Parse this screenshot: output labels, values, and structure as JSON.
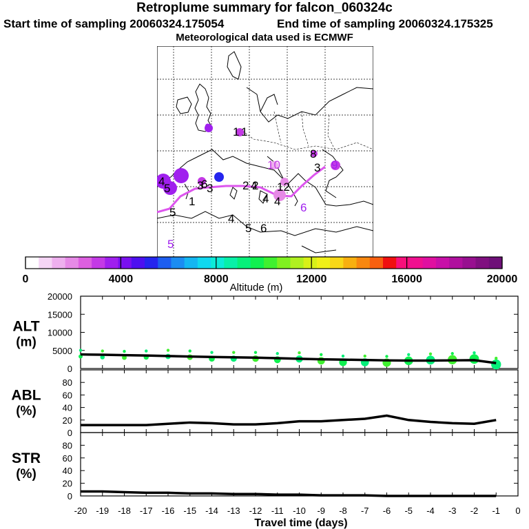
{
  "header": {
    "title": "Retroplume summary for falcon_060324c",
    "start_time": "Start time of sampling 20060324.175054",
    "end_time": "End time of sampling 20060324.175325",
    "meteo": "Meteorological data used is ECMWF"
  },
  "colorbar": {
    "label": "Altitude (m)",
    "tick_labels": [
      "0",
      "4000",
      "8000",
      "12000",
      "16000",
      "20000"
    ],
    "tick_values": [
      0,
      4000,
      8000,
      12000,
      16000,
      20000
    ],
    "colors": [
      "#ffffff",
      "#f5d5f5",
      "#eeb0ee",
      "#e68ae6",
      "#dd5fe0",
      "#c43ae6",
      "#a020ee",
      "#7a10f0",
      "#4d10f0",
      "#2525ee",
      "#1d5ef0",
      "#1b8cf2",
      "#14b6f2",
      "#10d8f0",
      "#0cecd8",
      "#08f0a8",
      "#06f07a",
      "#10f050",
      "#40f030",
      "#80f020",
      "#b0f020",
      "#d8f018",
      "#f0f018",
      "#f8d818",
      "#f8b010",
      "#f88810",
      "#f86010",
      "#f01010",
      "#f8107a",
      "#f01090",
      "#e010a0",
      "#c810a8",
      "#b0109e",
      "#981090",
      "#801080",
      "#6e1078"
    ]
  },
  "map": {
    "trajectory_color": "#dd55ee",
    "labels": [
      {
        "text": "0",
        "color": "#a020ee"
      },
      {
        "text": "1",
        "color": "#000000"
      },
      {
        "text": "1",
        "color": "#000000"
      },
      {
        "text": "8",
        "color": "#000000"
      },
      {
        "text": "10",
        "color": "#c43ae6"
      },
      {
        "text": "3",
        "color": "#000000"
      },
      {
        "text": "9",
        "color": "#a020ee"
      },
      {
        "text": "4",
        "color": "#000000"
      },
      {
        "text": "5",
        "color": "#000000"
      },
      {
        "text": "3",
        "color": "#000000"
      },
      {
        "text": "6",
        "color": "#000000"
      },
      {
        "text": "3",
        "color": "#000000"
      },
      {
        "text": "2",
        "color": "#000000"
      },
      {
        "text": "4",
        "color": "#000000"
      },
      {
        "text": "1",
        "color": "#000000"
      },
      {
        "text": "5",
        "color": "#000000"
      },
      {
        "text": "2",
        "color": "#000000"
      },
      {
        "text": "12",
        "color": "#000000"
      },
      {
        "text": "4",
        "color": "#000000"
      },
      {
        "text": "4",
        "color": "#000000"
      },
      {
        "text": "6",
        "color": "#a020ee"
      },
      {
        "text": "4",
        "color": "#000000"
      },
      {
        "text": "5",
        "color": "#000000"
      },
      {
        "text": "6",
        "color": "#000000"
      },
      {
        "text": "5",
        "color": "#a020ee"
      }
    ]
  },
  "chart_data": [
    {
      "type": "line",
      "panel": "ALT",
      "ylabel": "ALT\n(m)",
      "ylabel_line1": "ALT",
      "ylabel_line2": "(m)",
      "ylim": [
        0,
        20000
      ],
      "yticks": [
        0,
        5000,
        10000,
        15000,
        20000
      ],
      "x": [
        -20,
        -19,
        -18,
        -17,
        -16,
        -15,
        -14,
        -13,
        -12,
        -11,
        -10,
        -9,
        -8,
        -7,
        -6,
        -5,
        -4,
        -3,
        -2,
        -1
      ],
      "series": [
        {
          "name": "mean altitude",
          "values": [
            3900,
            3800,
            3700,
            3600,
            3450,
            3300,
            3200,
            3100,
            3000,
            2850,
            2700,
            2550,
            2450,
            2350,
            2250,
            2200,
            2200,
            2250,
            2300,
            1500
          ]
        },
        {
          "name": "altitude clusters",
          "values": [
            3900,
            3700,
            3600,
            3700,
            3900,
            3700,
            3300,
            3300,
            3300,
            3000,
            3200,
            2700,
            2300,
            2300,
            2200,
            2700,
            2900,
            3000,
            3200,
            1700
          ]
        }
      ]
    },
    {
      "type": "line",
      "panel": "ABL",
      "ylabel_line1": "ABL",
      "ylabel_line2": "(%)",
      "ylim": [
        0,
        100
      ],
      "yticks": [
        0,
        20,
        40,
        60,
        80
      ],
      "x": [
        -20,
        -19,
        -18,
        -17,
        -16,
        -15,
        -14,
        -13,
        -12,
        -11,
        -10,
        -9,
        -8,
        -7,
        -6,
        -5,
        -4,
        -3,
        -2,
        -1
      ],
      "series": [
        {
          "name": "ABL fraction",
          "values": [
            12,
            12,
            12,
            12,
            14,
            16,
            15,
            13,
            13,
            15,
            18,
            18,
            20,
            22,
            27,
            20,
            17,
            15,
            14,
            20
          ]
        }
      ]
    },
    {
      "type": "line",
      "panel": "STR",
      "ylabel_line1": "STR",
      "ylabel_line2": "(%)",
      "ylim": [
        0,
        100
      ],
      "yticks": [
        0,
        20,
        40,
        60,
        80
      ],
      "x": [
        -20,
        -19,
        -18,
        -17,
        -16,
        -15,
        -14,
        -13,
        -12,
        -11,
        -10,
        -9,
        -8,
        -7,
        -6,
        -5,
        -4,
        -3,
        -2,
        -1
      ],
      "series": [
        {
          "name": "STR fraction",
          "values": [
            7,
            7,
            6,
            5,
            5,
            4,
            4,
            3,
            3,
            2,
            2,
            1,
            1,
            1,
            0,
            0,
            0,
            0,
            0,
            0
          ]
        }
      ]
    }
  ],
  "xaxis": {
    "label": "Travel time (days)",
    "tick_labels": [
      "-20",
      "-19",
      "-18",
      "-17",
      "-16",
      "-15",
      "-14",
      "-13",
      "-12",
      "-11",
      "-10",
      "-9",
      "-8",
      "-7",
      "-6",
      "-5",
      "-4",
      "-3",
      "-2",
      "-1",
      "0"
    ]
  }
}
